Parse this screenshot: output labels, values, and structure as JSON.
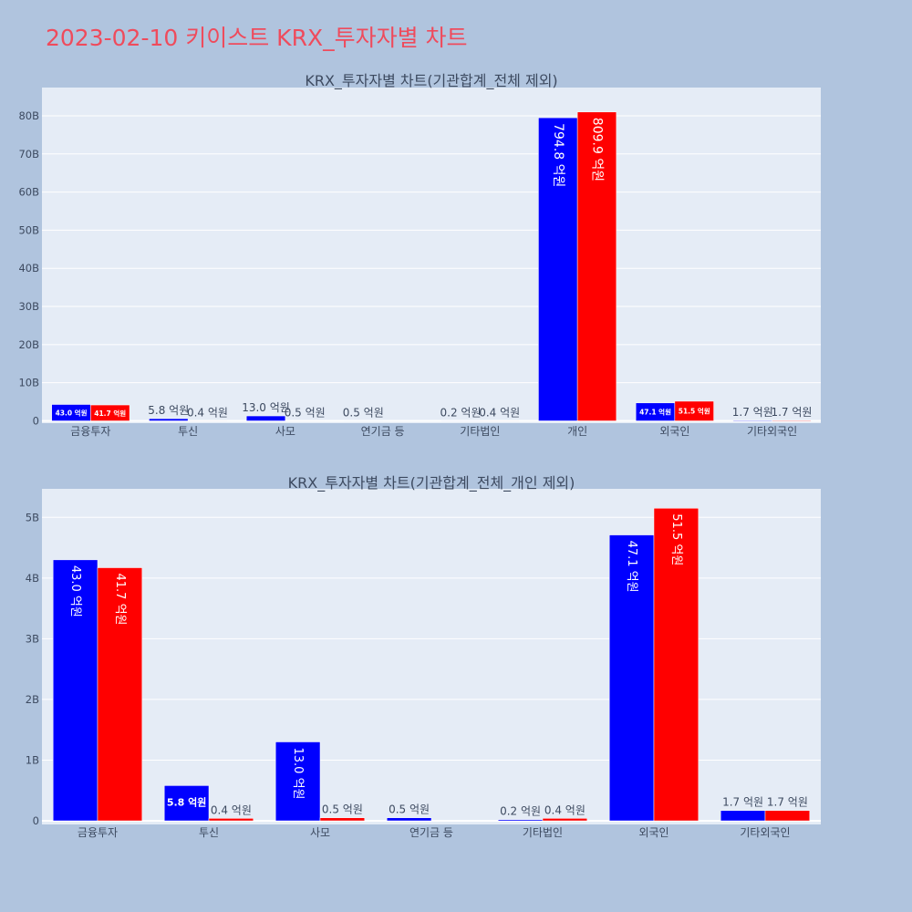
{
  "page_title": "2023-02-10 키이스트 KRX_투자자별 차트",
  "colors": {
    "series_buy": "#0000ff",
    "series_sell": "#ff0000",
    "background": "#b0c4de",
    "plot_bg": "#e5ecf6",
    "title": "#ef4b5c"
  },
  "chart_data": [
    {
      "type": "bar",
      "title": "KRX_투자자별 차트(기관합계_전체 제외)",
      "categories": [
        "금융투자",
        "투신",
        "사모",
        "연기금 등",
        "기타법인",
        "개인",
        "외국인",
        "기타외국인"
      ],
      "series": [
        {
          "values": [
            4.3,
            0.58,
            1.3,
            0.05,
            0.02,
            79.48,
            4.71,
            0.17
          ],
          "labels": [
            "43.0 억원",
            "5.8 억원",
            "13.0 억원",
            "0.5 억원",
            "0.2 억원",
            "794.8 억원",
            "47.1 억원",
            "1.7 억원"
          ]
        },
        {
          "values": [
            4.17,
            0.04,
            0.05,
            0,
            0.04,
            80.99,
            5.15,
            0.17
          ],
          "labels": [
            "41.7 억원",
            "0.4 억원",
            "0.5 억원",
            "",
            "0.4 억원",
            "809.9 억원",
            "51.5 억원",
            "1.7 억원"
          ]
        }
      ],
      "y_unit": "B",
      "yticks": [
        0,
        10,
        20,
        30,
        40,
        50,
        60,
        70,
        80
      ],
      "ytick_labels": [
        "0",
        "10B",
        "20B",
        "30B",
        "40B",
        "50B",
        "60B",
        "70B",
        "80B"
      ],
      "ylim": [
        -0.6,
        87.4
      ],
      "grid": true,
      "legend": "none"
    },
    {
      "type": "bar",
      "title": "KRX_투자자별 차트(기관합계_전체_개인 제외)",
      "categories": [
        "금융투자",
        "투신",
        "사모",
        "연기금 등",
        "기타법인",
        "외국인",
        "기타외국인"
      ],
      "series": [
        {
          "values": [
            4.3,
            0.58,
            1.3,
            0.05,
            0.02,
            4.71,
            0.17
          ],
          "labels": [
            "43.0 억원",
            "5.8 억원",
            "13.0 억원",
            "0.5 억원",
            "0.2 억원",
            "47.1 억원",
            "1.7 억원"
          ]
        },
        {
          "values": [
            4.17,
            0.04,
            0.05,
            0,
            0.04,
            5.15,
            0.17
          ],
          "labels": [
            "41.7 억원",
            "0.4 억원",
            "0.5 억원",
            "",
            "0.4 억원",
            "51.5 억원",
            "1.7 억원"
          ]
        }
      ],
      "y_unit": "B",
      "yticks": [
        0,
        1,
        2,
        3,
        4,
        5
      ],
      "ytick_labels": [
        "0",
        "1B",
        "2B",
        "3B",
        "4B",
        "5B"
      ],
      "ylim": [
        -0.06,
        5.47
      ],
      "grid": true,
      "legend": "none"
    }
  ]
}
